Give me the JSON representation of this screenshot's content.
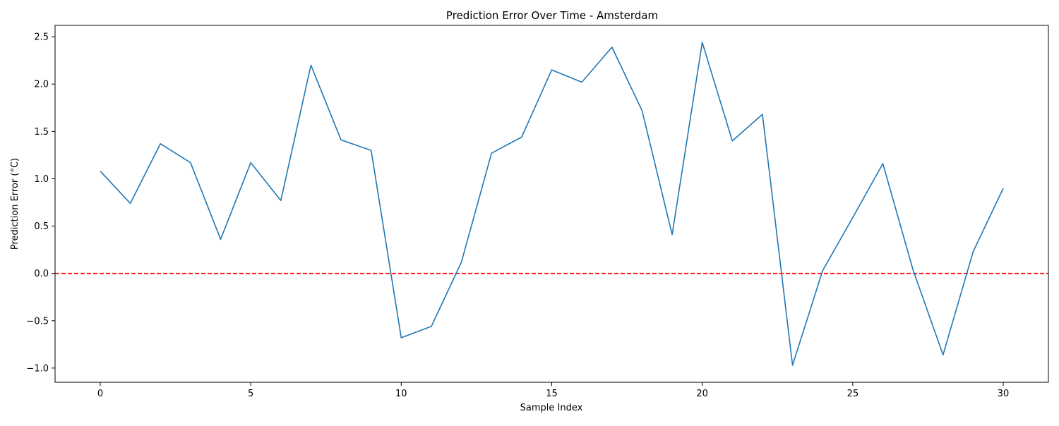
{
  "chart_data": {
    "type": "line",
    "title": "Prediction Error Over Time - Amsterdam",
    "xlabel": "Sample Index",
    "ylabel": "Prediction Error (°C)",
    "xlim": [
      -1.5,
      31.5
    ],
    "ylim": [
      -1.15,
      2.62
    ],
    "x_ticks": [
      0,
      5,
      10,
      15,
      20,
      25,
      30
    ],
    "x_tick_labels": [
      "0",
      "5",
      "10",
      "15",
      "20",
      "25",
      "30"
    ],
    "y_ticks": [
      -1.0,
      -0.5,
      0.0,
      0.5,
      1.0,
      1.5,
      2.0,
      2.5
    ],
    "y_tick_labels": [
      "−1.0",
      "−0.5",
      "0.0",
      "0.5",
      "1.0",
      "1.5",
      "2.0",
      "2.5"
    ],
    "grid": false,
    "series": [
      {
        "x": [
          0,
          1,
          2,
          3,
          4,
          5,
          6,
          7,
          8,
          9,
          10,
          11,
          12,
          13,
          14,
          15,
          16,
          17,
          18,
          19,
          20,
          21,
          22,
          23,
          24,
          25,
          26,
          27,
          28,
          29,
          30
        ],
        "values": [
          1.08,
          0.74,
          1.37,
          1.17,
          0.36,
          1.17,
          0.77,
          2.2,
          1.41,
          1.3,
          -0.68,
          -0.56,
          0.12,
          1.27,
          1.44,
          2.15,
          2.02,
          2.39,
          1.72,
          0.41,
          2.44,
          1.4,
          1.68,
          -0.97,
          0.03,
          0.59,
          1.16,
          0.04,
          -0.86,
          0.23,
          0.9
        ],
        "color": "#1f77b4"
      }
    ],
    "reference_line": {
      "y": 0.0,
      "color": "#ff0000",
      "style": "dashed"
    },
    "colors": {
      "line": "#1f77b4",
      "reference": "#ff0000",
      "axes": "#000000"
    }
  }
}
